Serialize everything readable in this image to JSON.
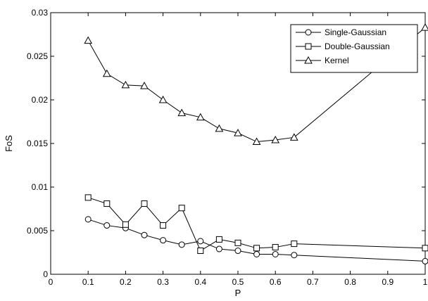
{
  "chart_data": {
    "type": "line",
    "title": "",
    "xlabel": "P",
    "ylabel": "FoS",
    "xlim": [
      0,
      1
    ],
    "ylim": [
      0,
      0.03
    ],
    "xticks": [
      "0",
      "0.1",
      "0.2",
      "0.3",
      "0.4",
      "0.5",
      "0.6",
      "0.7",
      "0.8",
      "0.9",
      "1"
    ],
    "yticks": [
      "0",
      "0.005",
      "0.01",
      "0.015",
      "0.02",
      "0.025",
      "0.03"
    ],
    "grid": false,
    "legend_position": "top-right",
    "series": [
      {
        "name": "Single-Gaussian",
        "marker": "circle",
        "x": [
          0.1,
          0.15,
          0.2,
          0.25,
          0.3,
          0.35,
          0.4,
          0.45,
          0.5,
          0.55,
          0.6,
          0.65,
          1.0
        ],
        "values": [
          0.0063,
          0.0056,
          0.0053,
          0.0045,
          0.0039,
          0.0034,
          0.0038,
          0.0029,
          0.0027,
          0.0023,
          0.0023,
          0.0022,
          0.0015
        ]
      },
      {
        "name": "Double-Gaussian",
        "marker": "square",
        "x": [
          0.1,
          0.15,
          0.2,
          0.25,
          0.3,
          0.35,
          0.4,
          0.45,
          0.5,
          0.55,
          0.6,
          0.65,
          1.0
        ],
        "values": [
          0.0088,
          0.0081,
          0.0057,
          0.0081,
          0.0056,
          0.0076,
          0.0027,
          0.004,
          0.0036,
          0.003,
          0.0031,
          0.0035,
          0.003
        ]
      },
      {
        "name": "Kernel",
        "marker": "triangle",
        "x": [
          0.1,
          0.15,
          0.2,
          0.25,
          0.3,
          0.35,
          0.4,
          0.45,
          0.5,
          0.55,
          0.6,
          0.65,
          1.0
        ],
        "values": [
          0.0268,
          0.023,
          0.0217,
          0.0216,
          0.02,
          0.0185,
          0.018,
          0.0167,
          0.0162,
          0.0152,
          0.0154,
          0.0157,
          0.0283
        ]
      }
    ]
  }
}
